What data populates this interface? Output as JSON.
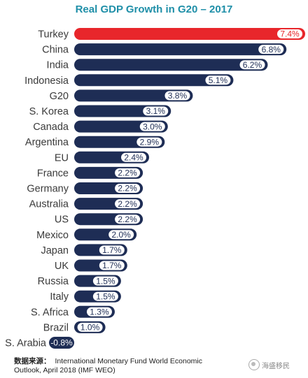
{
  "chart_data": {
    "type": "bar",
    "orientation": "horizontal",
    "title": "Real GDP Growth in G20 – 2017",
    "categories": [
      "Turkey",
      "China",
      "India",
      "Indonesia",
      "G20",
      "S. Korea",
      "Canada",
      "Argentina",
      "EU",
      "France",
      "Germany",
      "Australia",
      "US",
      "Mexico",
      "Japan",
      "UK",
      "Russia",
      "Italy",
      "S. Africa",
      "Brazil",
      "S. Arabia"
    ],
    "values": [
      7.4,
      6.8,
      6.2,
      5.1,
      3.8,
      3.1,
      3.0,
      2.9,
      2.4,
      2.2,
      2.2,
      2.2,
      2.2,
      2.0,
      1.7,
      1.7,
      1.5,
      1.5,
      1.3,
      1.0,
      -0.8
    ],
    "value_labels": [
      "7.4%",
      "6.8%",
      "6.2%",
      "5.1%",
      "3.8%",
      "3.1%",
      "3.0%",
      "2.9%",
      "2.4%",
      "2.2%",
      "2.2%",
      "2.2%",
      "2.2%",
      "2.0%",
      "1.7%",
      "1.7%",
      "1.5%",
      "1.5%",
      "1.3%",
      "1.0%",
      "-0.8%"
    ],
    "highlight_category": "Turkey",
    "colors": {
      "bar": "#1e2d55",
      "highlight": "#e8262b",
      "pill": "#ffffff",
      "title": "#1f8fa8"
    },
    "xlim": [
      0,
      7.4
    ],
    "legend": "none",
    "grid": false
  },
  "source": {
    "prefix": "数据来源：",
    "text": "International Monetary Fund World Economic Outlook, April 2018 (IMF WEO)"
  },
  "watermark": {
    "text": "海盛移民",
    "icon": "wechat-logo-icon"
  }
}
